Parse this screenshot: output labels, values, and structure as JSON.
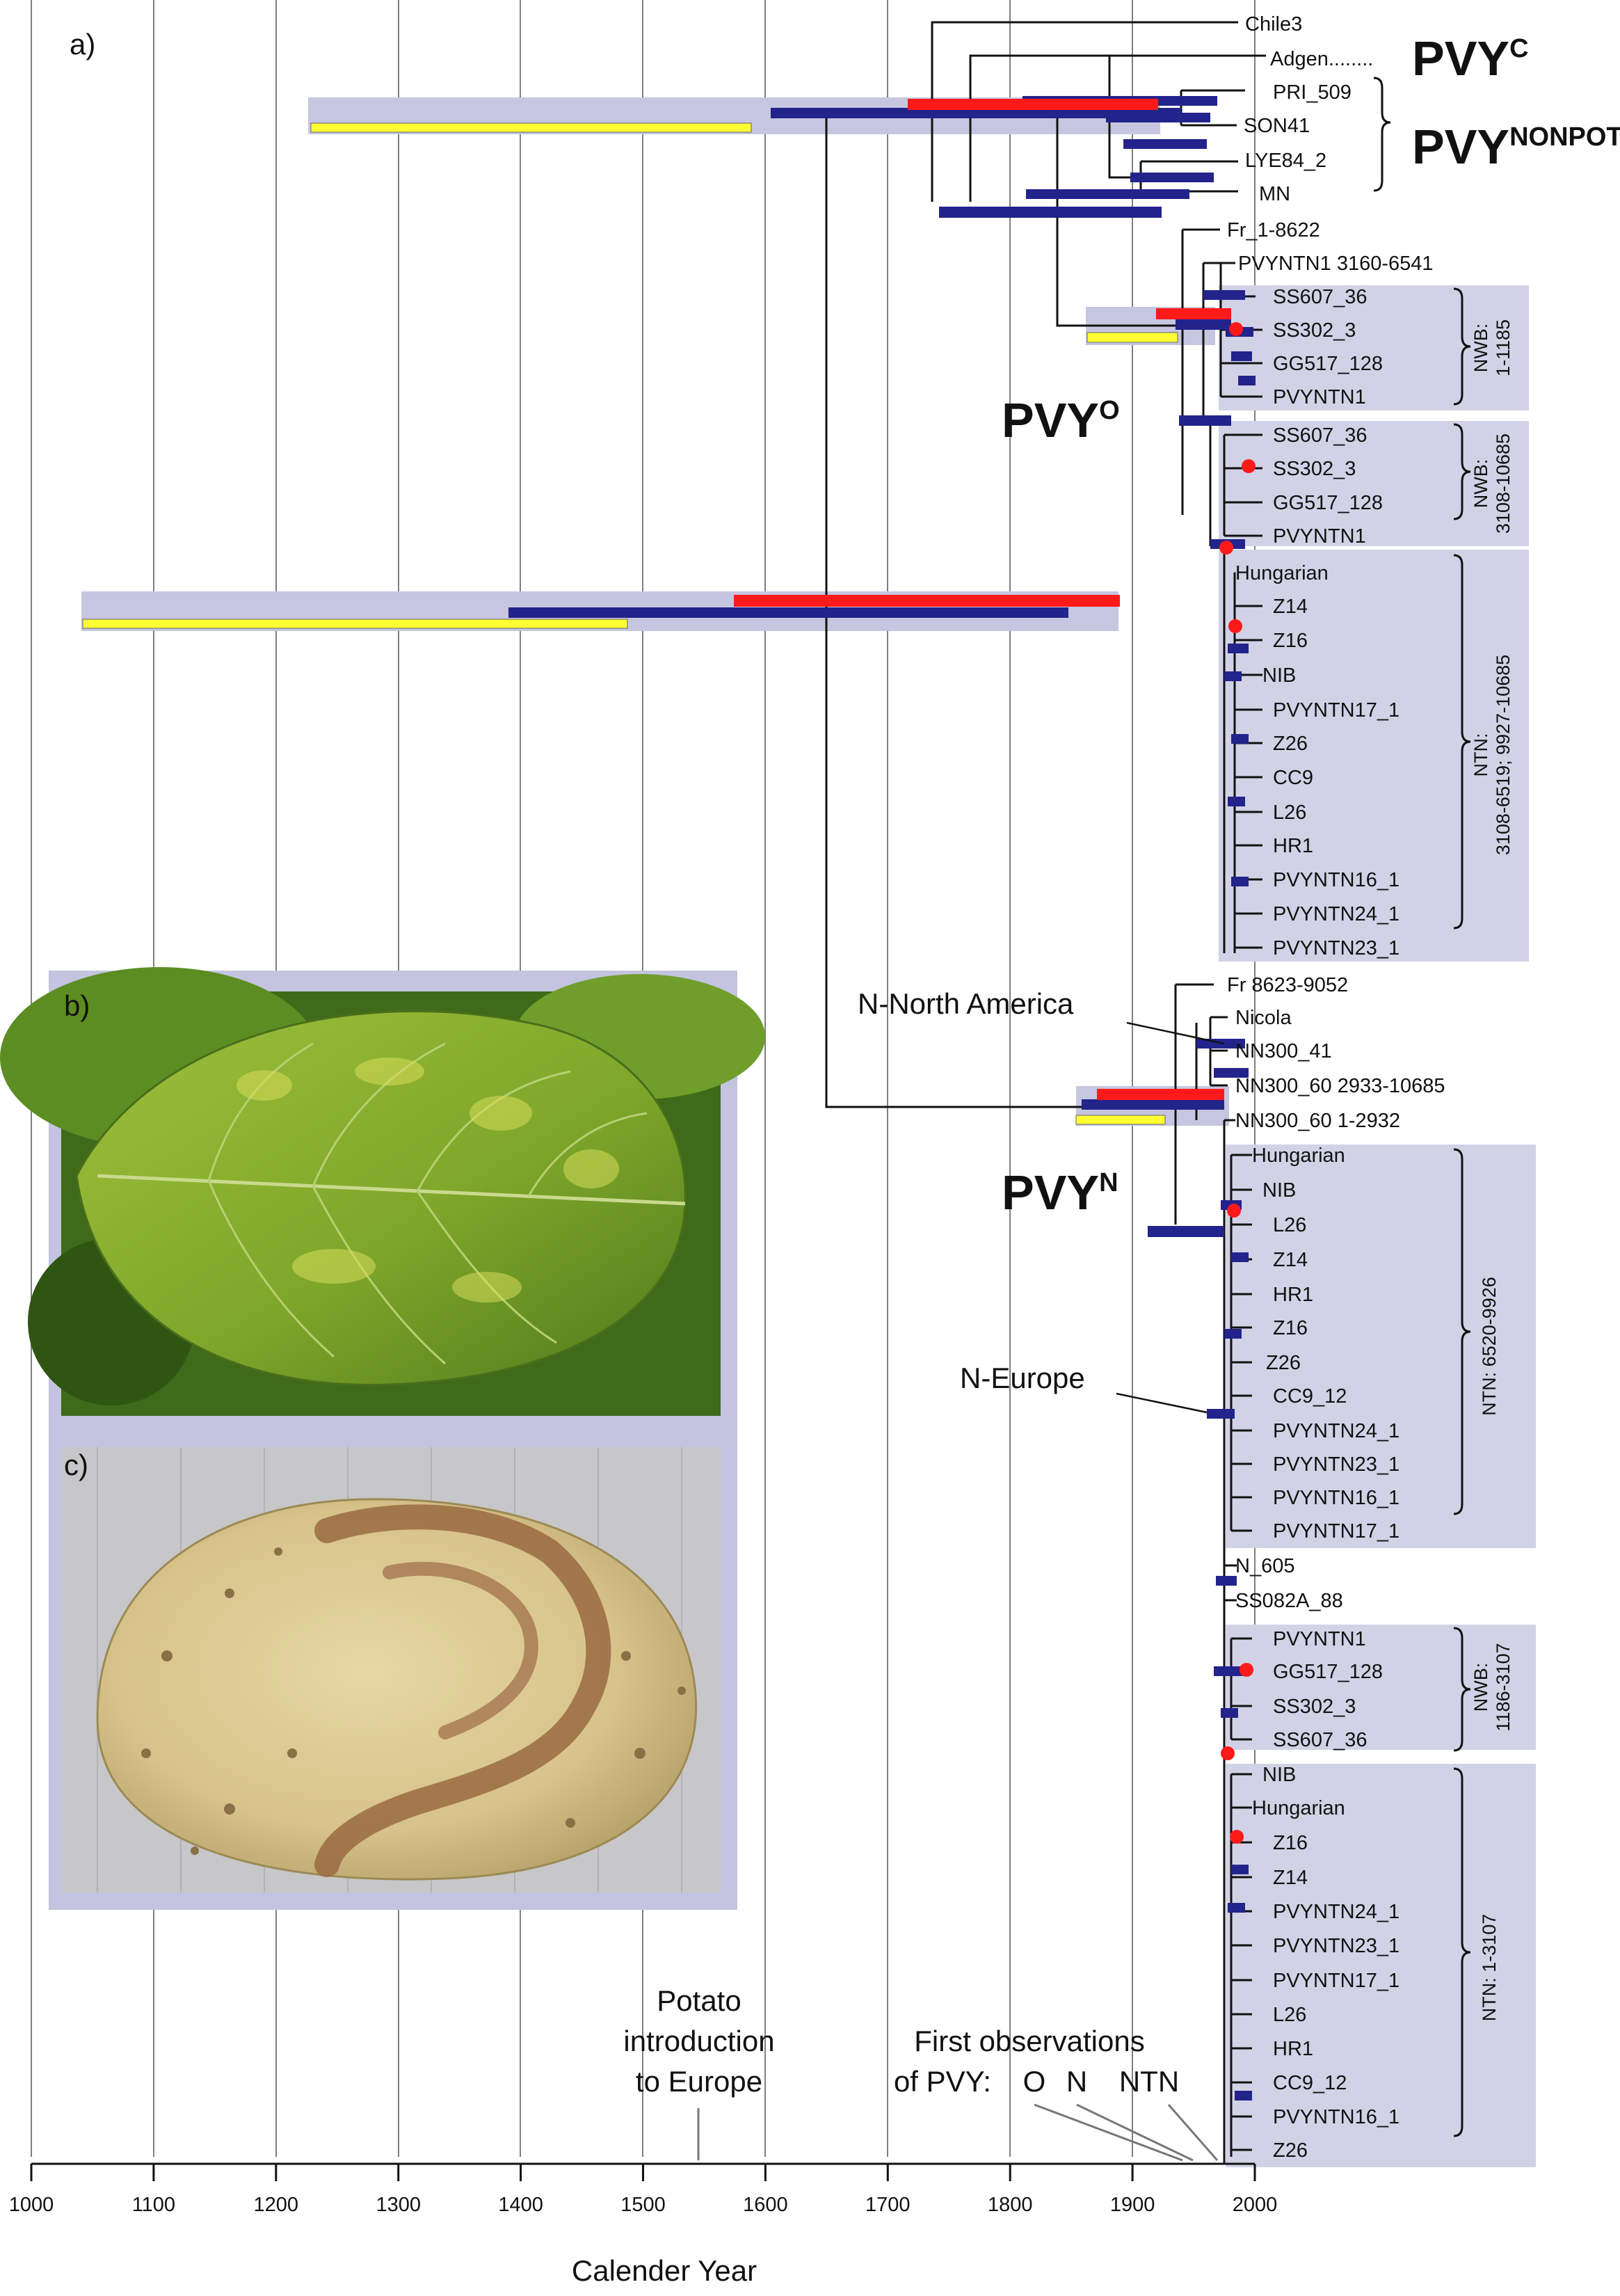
{
  "panel_labels": {
    "a": "a)",
    "b": "b)",
    "c": "c)"
  },
  "x_axis": {
    "label": "Calender Year",
    "ticks": [
      "1000",
      "1100",
      "1200",
      "1300",
      "1400",
      "1500",
      "1600",
      "1700",
      "1800",
      "1900",
      "2000"
    ]
  },
  "groups": {
    "pvyc": {
      "main": "PVY",
      "sup": "C"
    },
    "nonpot": {
      "main": "PVY",
      "sup": "NONPOT"
    },
    "pvyo": {
      "main": "PVY",
      "sup": "O"
    },
    "pvyn": {
      "main": "PVY",
      "sup": "N"
    }
  },
  "clade_labels": {
    "nwb1_a": "NWB:",
    "nwb1_b": "1-1185",
    "nwb2_a": "NWB:",
    "nwb2_b": "3108-10685",
    "ntn1_a": "NTN:",
    "ntn1_b": "3108-6519; 9927-10685",
    "ntn2": "NTN: 6520-9926",
    "nwb3_a": "NWB:",
    "nwb3_b": "1186-3107",
    "ntn3": "NTN: 1-3107"
  },
  "taxa": [
    "Chile3",
    "Adgen........",
    "PRI_509",
    "SON41",
    "LYE84_2",
    "MN",
    "Fr_1-8622",
    "PVYNTN1 3160-6541",
    "SS607_36",
    "SS302_3",
    "GG517_128",
    "PVYNTN1",
    "SS607_36",
    "SS302_3",
    "GG517_128",
    "PVYNTN1",
    "Hungarian",
    "Z14",
    "Z16",
    "NIB",
    "PVYNTN17_1",
    "Z26",
    "CC9",
    "L26",
    "HR1",
    "PVYNTN16_1",
    "PVYNTN24_1",
    "PVYNTN23_1",
    "Fr 8623-9052",
    "Nicola",
    "NN300_41",
    "NN300_60 2933-10685",
    "NN300_60 1-2932",
    "Hungarian",
    "NIB",
    "L26",
    "Z14",
    "HR1",
    "Z16",
    "Z26",
    "CC9_12",
    "PVYNTN24_1",
    "PVYNTN23_1",
    "PVYNTN16_1",
    "PVYNTN17_1",
    "N_605",
    "SS082A_88",
    "PVYNTN1",
    "GG517_128",
    "SS302_3",
    "SS607_36",
    "NIB",
    "Hungarian",
    "Z16",
    "Z14",
    "PVYNTN24_1",
    "PVYNTN23_1",
    "PVYNTN17_1",
    "L26",
    "HR1",
    "CC9_12",
    "PVYNTN16_1",
    "Z26"
  ],
  "annotations": {
    "north_america": "N-North America",
    "europe": "N-Europe",
    "potato_1": "Potato",
    "potato_2": "introduction",
    "potato_3": "to Europe",
    "first_obs_1": "First observations",
    "first_obs_2": "of PVY:",
    "first_obs_o": "O",
    "first_obs_n": "N",
    "first_obs_ntn": "NTN"
  },
  "photos": {
    "leaf": "leaf with mosaic symptoms (photograph)",
    "tuber": "potato tuber with ringspot necrosis (photograph)"
  },
  "colors": {
    "hpd_bar": "#23238c",
    "red_bar": "#ff1a1a",
    "yellow_bar": "#ffff33",
    "clade_box": "#d0d0e6",
    "node_dot": "#ff1a1a"
  }
}
